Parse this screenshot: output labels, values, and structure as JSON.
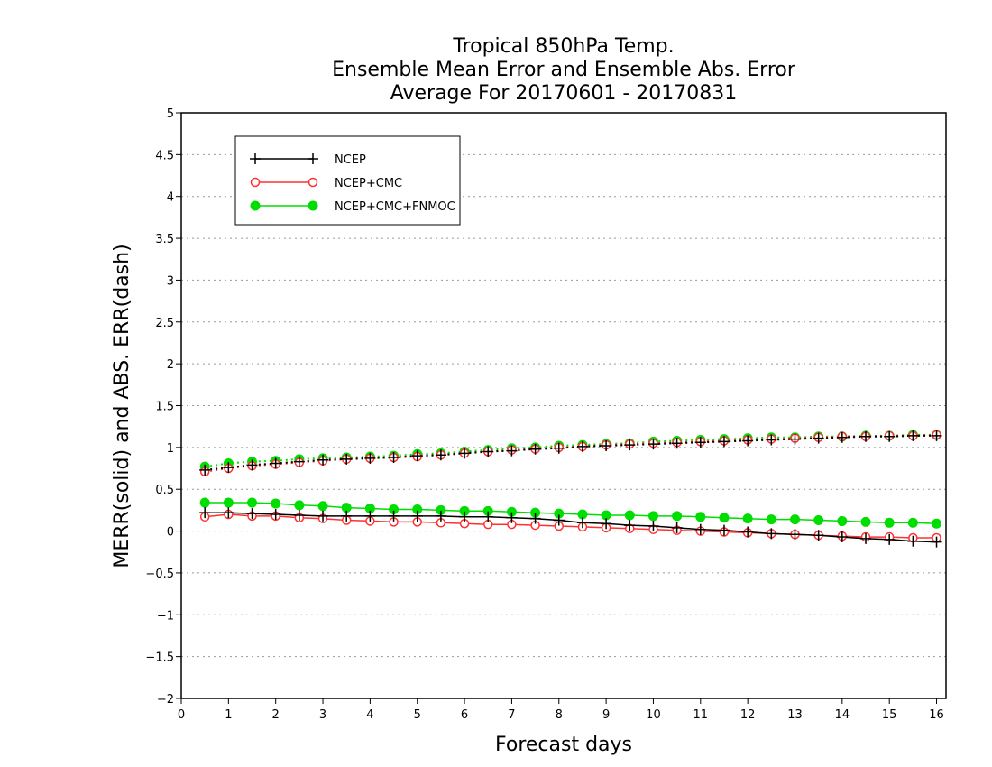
{
  "chart_data": {
    "type": "line",
    "title_lines": [
      "Tropical 850hPa Temp.",
      "Ensemble Mean Error and Ensemble Abs. Error",
      "Average For 20170601 - 20170831"
    ],
    "xlabel": "Forecast days",
    "ylabel": "MERR(solid) and ABS. ERR(dash)",
    "xlim": [
      0,
      16.2
    ],
    "ylim": [
      -2,
      5
    ],
    "xticks": [
      0,
      1,
      2,
      3,
      4,
      5,
      6,
      7,
      8,
      9,
      10,
      11,
      12,
      13,
      14,
      15,
      16
    ],
    "xtick_labels": [
      "0",
      "1",
      "2",
      "3",
      "4",
      "5",
      "6",
      "7",
      "8",
      "9",
      "10",
      "11",
      "12",
      "13",
      "14",
      "15",
      "16"
    ],
    "yticks": [
      -2,
      -1.5,
      -1,
      -0.5,
      0,
      0.5,
      1,
      1.5,
      2,
      2.5,
      3,
      3.5,
      4,
      4.5,
      5
    ],
    "ytick_labels": [
      "−2",
      "−1.5",
      "−1",
      "−0.5",
      "0",
      "0.5",
      "1",
      "1.5",
      "2",
      "2.5",
      "3",
      "3.5",
      "4",
      "4.5",
      "5"
    ],
    "grid": "horizontal dotted",
    "legend_position": "top-left",
    "x": [
      0.5,
      1,
      1.5,
      2,
      2.5,
      3,
      3.5,
      4,
      4.5,
      5,
      5.5,
      6,
      6.5,
      7,
      7.5,
      8,
      8.5,
      9,
      9.5,
      10,
      10.5,
      11,
      11.5,
      12,
      12.5,
      13,
      13.5,
      14,
      14.5,
      15,
      15.5,
      16
    ],
    "series": [
      {
        "name": "NCEP",
        "color": "#000000",
        "marker": "plus",
        "merr": [
          0.22,
          0.22,
          0.21,
          0.2,
          0.19,
          0.18,
          0.18,
          0.18,
          0.18,
          0.18,
          0.18,
          0.17,
          0.17,
          0.16,
          0.15,
          0.13,
          0.1,
          0.09,
          0.07,
          0.06,
          0.04,
          0.02,
          0.01,
          -0.01,
          -0.03,
          -0.04,
          -0.05,
          -0.07,
          -0.09,
          -0.1,
          -0.12,
          -0.13
        ],
        "abs_err": [
          0.73,
          0.76,
          0.79,
          0.81,
          0.83,
          0.85,
          0.86,
          0.87,
          0.88,
          0.9,
          0.91,
          0.93,
          0.95,
          0.96,
          0.98,
          0.99,
          1.01,
          1.02,
          1.03,
          1.04,
          1.05,
          1.06,
          1.07,
          1.08,
          1.09,
          1.1,
          1.11,
          1.12,
          1.13,
          1.13,
          1.14,
          1.14
        ]
      },
      {
        "name": "NCEP+CMC",
        "color": "#ff3030",
        "marker": "open-circle",
        "merr": [
          0.17,
          0.2,
          0.18,
          0.18,
          0.16,
          0.15,
          0.13,
          0.12,
          0.11,
          0.11,
          0.1,
          0.09,
          0.08,
          0.08,
          0.07,
          0.06,
          0.05,
          0.04,
          0.03,
          0.02,
          0.01,
          0.0,
          -0.01,
          -0.02,
          -0.03,
          -0.04,
          -0.05,
          -0.06,
          -0.07,
          -0.07,
          -0.08,
          -0.08
        ],
        "abs_err": [
          0.71,
          0.75,
          0.78,
          0.8,
          0.82,
          0.84,
          0.86,
          0.87,
          0.88,
          0.89,
          0.91,
          0.93,
          0.95,
          0.97,
          0.98,
          1.0,
          1.01,
          1.03,
          1.04,
          1.05,
          1.06,
          1.07,
          1.08,
          1.09,
          1.1,
          1.11,
          1.12,
          1.13,
          1.13,
          1.14,
          1.14,
          1.15
        ]
      },
      {
        "name": "NCEP+CMC+FNMOC",
        "color": "#00dd00",
        "marker": "filled-circle",
        "merr": [
          0.34,
          0.34,
          0.34,
          0.33,
          0.31,
          0.3,
          0.28,
          0.27,
          0.26,
          0.26,
          0.25,
          0.24,
          0.24,
          0.23,
          0.22,
          0.21,
          0.2,
          0.19,
          0.19,
          0.18,
          0.18,
          0.17,
          0.16,
          0.15,
          0.14,
          0.14,
          0.13,
          0.12,
          0.11,
          0.1,
          0.1,
          0.09
        ],
        "abs_err": [
          0.77,
          0.81,
          0.83,
          0.84,
          0.86,
          0.87,
          0.88,
          0.89,
          0.9,
          0.92,
          0.93,
          0.95,
          0.97,
          0.99,
          1.0,
          1.02,
          1.03,
          1.04,
          1.05,
          1.07,
          1.08,
          1.09,
          1.1,
          1.11,
          1.12,
          1.12,
          1.13,
          1.13,
          1.14,
          1.14,
          1.15,
          1.15
        ]
      }
    ]
  }
}
